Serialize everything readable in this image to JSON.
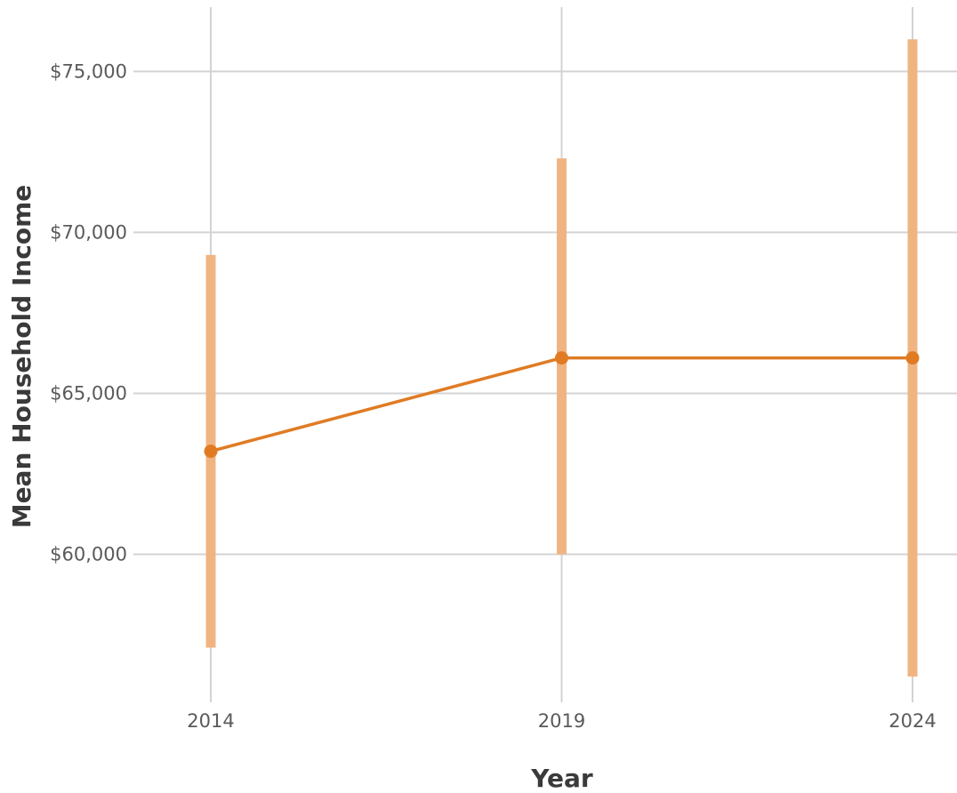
{
  "chart_data": {
    "type": "line",
    "title": "",
    "xlabel": "Year",
    "ylabel": "Mean Household Income",
    "x": [
      2014,
      2019,
      2024
    ],
    "x_tick_labels": [
      "2014",
      "2019",
      "2024"
    ],
    "y_ticks": [
      60000,
      65000,
      70000,
      75000
    ],
    "y_tick_labels": [
      "$60,000",
      "$65,000",
      "$70,000",
      "$75,000"
    ],
    "ylim": [
      55400,
      77000
    ],
    "series": [
      {
        "values": [
          63200,
          66100,
          66100
        ],
        "error_low": [
          57100,
          60000,
          56200
        ],
        "error_high": [
          69300,
          72300,
          76000
        ]
      }
    ],
    "grid": true,
    "legend": "none",
    "colors": {
      "line": "#e07b24",
      "point": "#e07b24",
      "error_bar": "#f0b482",
      "grid": "#d3d3d3"
    }
  }
}
